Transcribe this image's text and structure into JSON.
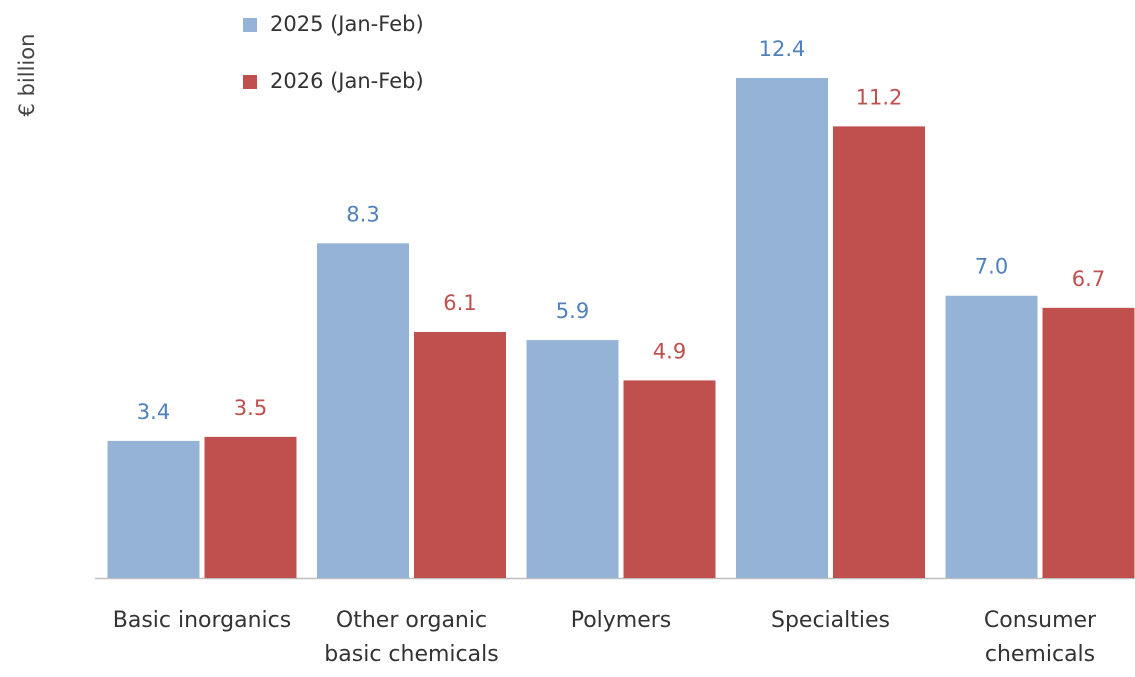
{
  "chart_data": {
    "type": "bar",
    "y_label": "€ billion",
    "categories": [
      "Basic inorganics",
      "Other organic basic chemicals",
      "Polymers",
      "Specialties",
      "Consumer chemicals"
    ],
    "series": [
      {
        "name": "2025 (Jan-Feb)",
        "color": "#95b3d7",
        "label_color": "#4f81bd",
        "values": [
          3.4,
          8.3,
          5.9,
          12.4,
          7.0
        ],
        "value_labels": [
          "3.4",
          "8.3",
          "5.9",
          "12.4",
          "7.0"
        ]
      },
      {
        "name": "2026 (Jan-Feb)",
        "color": "#c0504d",
        "label_color": "#c0504d",
        "values": [
          3.5,
          6.1,
          4.9,
          11.2,
          6.7
        ],
        "value_labels": [
          "3.5",
          "6.1",
          "4.9",
          "11.2",
          "6.7"
        ]
      }
    ],
    "legend": "top-left"
  }
}
